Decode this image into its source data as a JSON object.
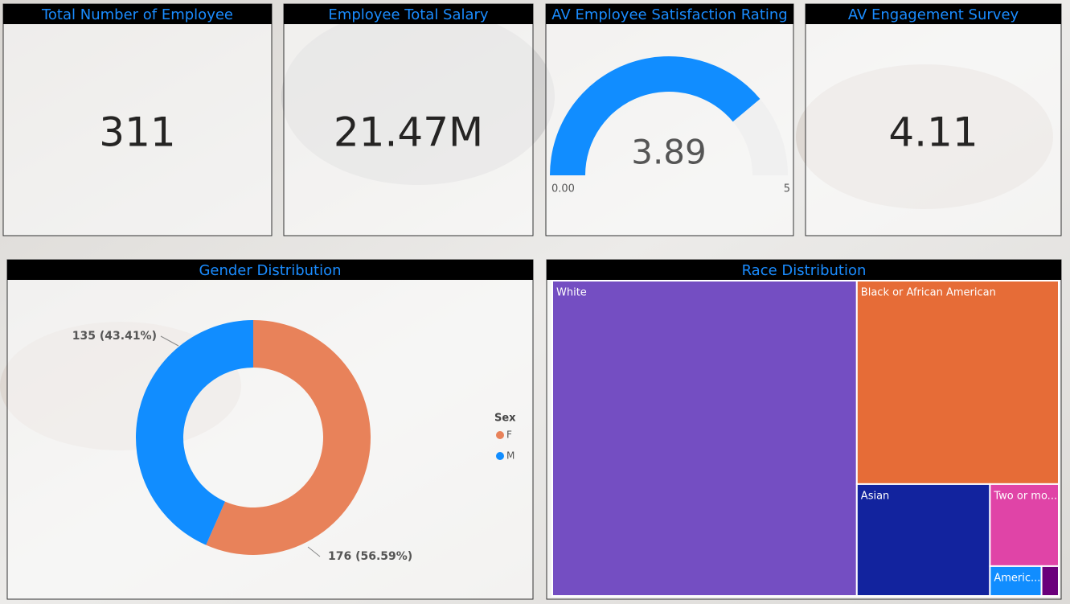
{
  "cards": [
    {
      "title": "Total Number of Employee",
      "value": 311
    },
    {
      "title": "Employee Total Salary",
      "value": 21470000,
      "value_label": "21.47M"
    },
    {
      "title": "AV Engagement Survey",
      "value": 4.11
    }
  ],
  "chart_data": [
    {
      "type": "gauge",
      "title": "AV Employee Satisfaction Rating",
      "value": 3.89,
      "color": "#118dff",
      "track_color": "#f0f0f0",
      "ylim": [
        0,
        5
      ],
      "yticks": [
        {
          "value": 0,
          "label": "0.00"
        },
        5
      ]
    },
    {
      "type": "pie",
      "title": "Gender Distribution",
      "legend_title": "Sex",
      "legend": "right",
      "categories": [
        "F",
        "M"
      ],
      "values": [
        176,
        135
      ],
      "value_labels": [
        "176 (56.59%)",
        "135 (43.41%)"
      ],
      "colors": [
        "#e8825a",
        "#118dff"
      ]
    },
    {
      "type": "treemap",
      "title": "Race Distribution",
      "categories": [
        "White",
        "Black or African American",
        "Asian",
        "Two or mo...",
        "Americ...",
        null
      ],
      "values": [
        187,
        80,
        29,
        11,
        3,
        1
      ],
      "colors": [
        "#744ec2",
        "#e66c37",
        "#12239e",
        "#e044a7",
        "#118dff",
        "#6b007b"
      ]
    }
  ]
}
